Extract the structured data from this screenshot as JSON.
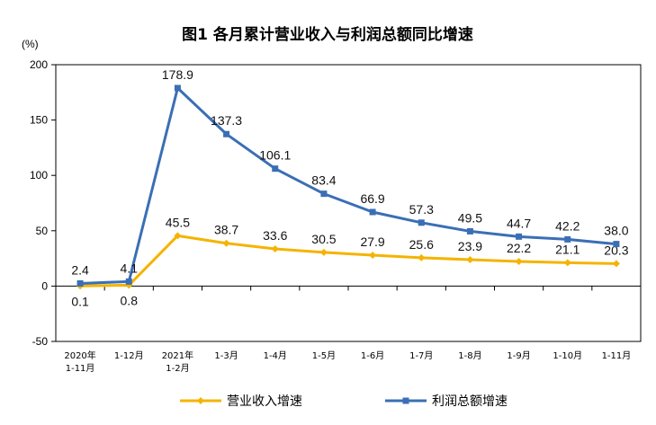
{
  "chart_data": {
    "type": "line",
    "title": "图1  各月累计营业收入与利润总额同比增速",
    "ylabel": "(%)",
    "xlabel": "",
    "ylim": [
      -50,
      200
    ],
    "yticks": [
      -50,
      0,
      50,
      100,
      150,
      200
    ],
    "categories": [
      [
        "2020年",
        "1-11月"
      ],
      [
        "1-12月"
      ],
      [
        "2021年",
        "1-2月"
      ],
      [
        "1-3月"
      ],
      [
        "1-4月"
      ],
      [
        "1-5月"
      ],
      [
        "1-6月"
      ],
      [
        "1-7月"
      ],
      [
        "1-8月"
      ],
      [
        "1-9月"
      ],
      [
        "1-10月"
      ],
      [
        "1-11月"
      ]
    ],
    "series": [
      {
        "name": "营业收入增速",
        "color": "#F5B301",
        "values": [
          0.1,
          0.8,
          45.5,
          38.7,
          33.6,
          30.5,
          27.9,
          25.6,
          23.9,
          22.2,
          21.1,
          20.3
        ],
        "labels": [
          "0.1",
          "0.8",
          "45.5",
          "38.7",
          "33.6",
          "30.5",
          "27.9",
          "25.6",
          "23.9",
          "22.2",
          "21.1",
          "20.3"
        ],
        "label_pos": "below_first_two"
      },
      {
        "name": "利润总额增速",
        "color": "#3A6FB5",
        "values": [
          2.4,
          4.1,
          178.9,
          137.3,
          106.1,
          83.4,
          66.9,
          57.3,
          49.5,
          44.7,
          42.2,
          38.0
        ],
        "labels": [
          "2.4",
          "4.1",
          "178.9",
          "137.3",
          "106.1",
          "83.4",
          "66.9",
          "57.3",
          "49.5",
          "44.7",
          "42.2",
          "38.0"
        ]
      }
    ],
    "grid": false,
    "legend": "bottom"
  }
}
